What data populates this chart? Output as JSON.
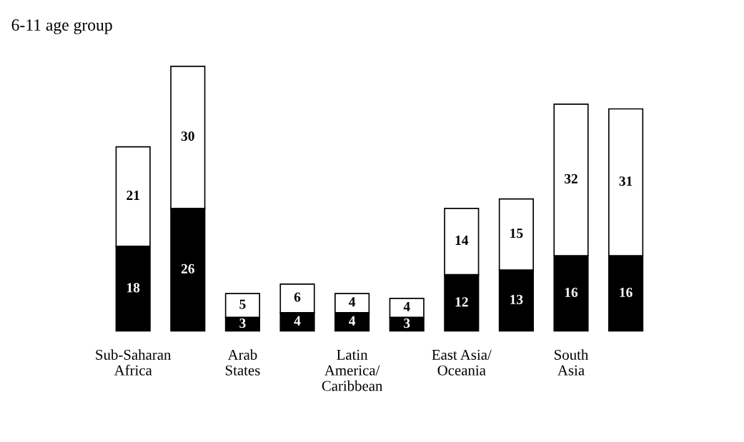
{
  "chart_data": {
    "type": "bar",
    "title": "6-11 age group",
    "stacked": true,
    "data_labels": true,
    "grid": false,
    "legend": false,
    "tick_labels": "x",
    "categories": [
      "Sub-Saharan\nAfrica",
      null,
      "Arab\nStates",
      null,
      "Latin\nAmerica/\nCaribbean",
      null,
      "East Asia/\nOceania",
      null,
      "South\nAsia",
      null
    ],
    "series": [
      {
        "color": "#000000",
        "values": [
          18,
          26,
          3,
          4,
          4,
          3,
          12,
          13,
          16,
          16
        ]
      },
      {
        "color": "#ffffff",
        "values": [
          21,
          30,
          5,
          6,
          4,
          4,
          14,
          15,
          32,
          31
        ]
      }
    ]
  }
}
